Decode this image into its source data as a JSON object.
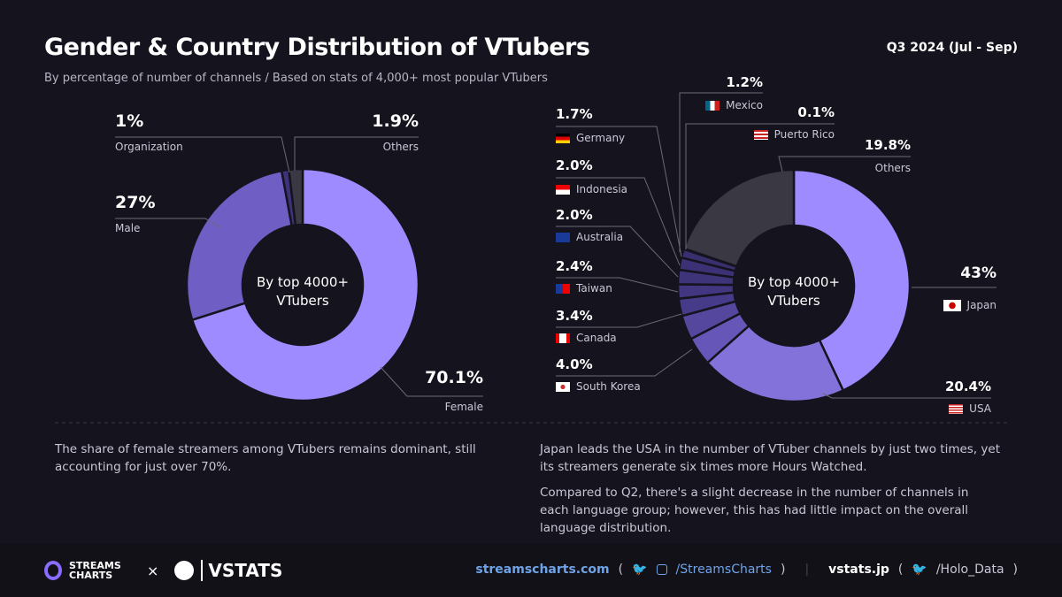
{
  "header": {
    "title": "Gender & Country Distribution of VTubers",
    "subtitle": "By percentage of number of channels / Based on stats of 4,000+ most popular VTubers",
    "period": "Q3 2024 (Jul - Sep)"
  },
  "chart_data": [
    {
      "type": "pie",
      "title": "Gender",
      "center_label": [
        "By top 4000+",
        "VTubers"
      ],
      "slices": [
        {
          "label": "Female",
          "value": 70.1,
          "display": "70.1%",
          "color": "#9d8bff"
        },
        {
          "label": "Male",
          "value": 27,
          "display": "27%",
          "color": "#6f5fc4"
        },
        {
          "label": "Organization",
          "value": 1,
          "display": "1%",
          "color": "#3c3378"
        },
        {
          "label": "Others",
          "value": 1.9,
          "display": "1.9%",
          "color": "#3a3943"
        }
      ]
    },
    {
      "type": "pie",
      "title": "Country",
      "center_label": [
        "By top 4000+",
        "VTubers"
      ],
      "slices": [
        {
          "label": "Japan",
          "value": 43,
          "display": "43%",
          "color": "#9d8bff"
        },
        {
          "label": "USA",
          "value": 20.4,
          "display": "20.4%",
          "color": "#8272d9"
        },
        {
          "label": "South Korea",
          "value": 4.0,
          "display": "4.0%",
          "color": "#6556b8"
        },
        {
          "label": "Canada",
          "value": 3.4,
          "display": "3.4%",
          "color": "#54479d"
        },
        {
          "label": "Taiwan",
          "value": 2.4,
          "display": "2.4%",
          "color": "#463b88"
        },
        {
          "label": "Australia",
          "value": 2.0,
          "display": "2.0%",
          "color": "#41367f"
        },
        {
          "label": "Indonesia",
          "value": 2.0,
          "display": "2.0%",
          "color": "#3e3479"
        },
        {
          "label": "Germany",
          "value": 1.7,
          "display": "1.7%",
          "color": "#3b3174"
        },
        {
          "label": "Mexico",
          "value": 1.2,
          "display": "1.2%",
          "color": "#382f6e"
        },
        {
          "label": "Puerto Rico",
          "value": 0.1,
          "display": "0.1%",
          "color": "#352c68"
        },
        {
          "label": "Others",
          "value": 19.8,
          "display": "19.8%",
          "color": "#3a3943"
        }
      ]
    }
  ],
  "notes": {
    "left": "The share of female streamers among VTubers remains dominant, still accounting for just over 70%.",
    "right1": "Japan leads the USA in the number of VTuber channels by just two times, yet its streamers generate six times more Hours Watched.",
    "right2": "Compared to Q2, there's a slight decrease in the number of channels in each language group; however, this has had little impact on the overall language distribution."
  },
  "footer": {
    "logo1": "STREAMS CHARTS",
    "x": "×",
    "logo2": "VSTATS",
    "site1": "streamscharts.com",
    "handle1": "/StreamsCharts",
    "site2": "vstats.jp",
    "handle2": "/Holo_Data",
    "paren_open": "(",
    "paren_close": ")"
  }
}
